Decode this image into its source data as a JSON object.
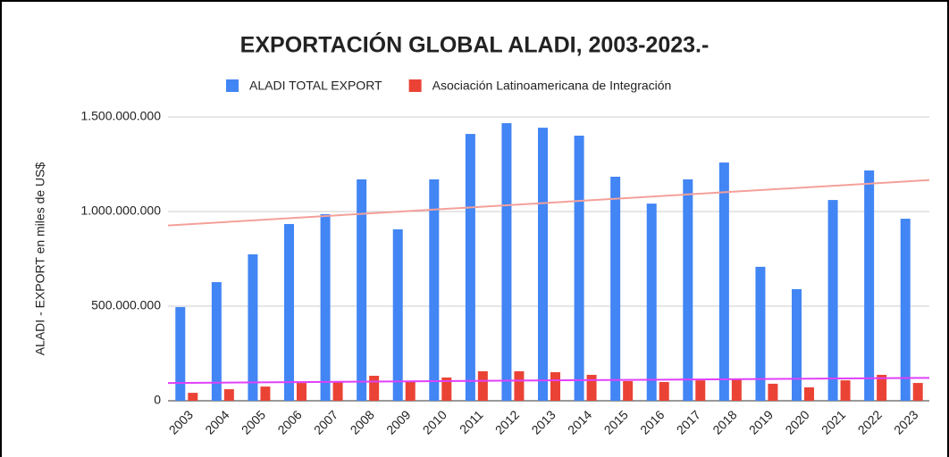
{
  "chart_data": {
    "type": "bar",
    "title": "EXPORTACIÓN GLOBAL ALADI, 2003-2023.-",
    "y_label": "ALADI - EXPORT en miles de US$",
    "categories": [
      "2003",
      "2004",
      "2005",
      "2006",
      "2007",
      "2008",
      "2009",
      "2010",
      "2011",
      "2012",
      "2013",
      "2014",
      "2015",
      "2016",
      "2017",
      "2018",
      "2019",
      "2020",
      "2021",
      "2022",
      "2023"
    ],
    "series": [
      {
        "name": "ALADI  TOTAL  EXPORT",
        "color": "#4285f4",
        "trendline_color": "#f4a09a",
        "values": [
          495000000,
          627000000,
          774000000,
          934000000,
          986000000,
          1170000000,
          906000000,
          1170000000,
          1410000000,
          1467000000,
          1443000000,
          1401000000,
          1184000000,
          1042000000,
          1170000000,
          1259000000,
          708000000,
          590000000,
          1061000000,
          1217000000,
          962000000
        ]
      },
      {
        "name": "Asociación Latinoamericana de Integración",
        "color": "#ea4335",
        "trendline_color": "#e040fb",
        "values": [
          42000000,
          61000000,
          75000000,
          94000000,
          104000000,
          132000000,
          99000000,
          123000000,
          156000000,
          156000000,
          151000000,
          137000000,
          104000000,
          99000000,
          108000000,
          118000000,
          90000000,
          71000000,
          108000000,
          137000000,
          94000000
        ]
      }
    ],
    "ylim": [
      0,
      1500000000
    ],
    "yticks": [
      0,
      {
        "value": 500000000,
        "label": "500.000.000"
      },
      {
        "value": 1000000000,
        "label": "1.000.000.000"
      },
      {
        "value": 1500000000,
        "label": "1.500.000.000"
      }
    ],
    "grid": true,
    "trendline": true,
    "legend": "top"
  }
}
